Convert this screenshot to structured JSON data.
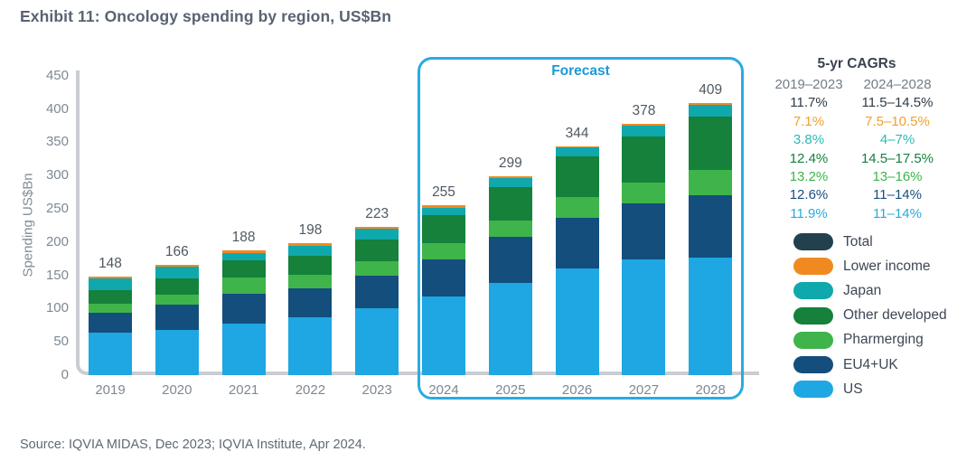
{
  "title": "Exhibit 11: Oncology spending by region, US$Bn",
  "source": "Source: IQVIA MIDAS, Dec 2023; IQVIA Institute, Apr 2024.",
  "chart_data": {
    "type": "bar",
    "stacked": true,
    "title": "Oncology spending by region, US$Bn",
    "ylabel": "Spending US$Bn",
    "ylim": [
      0,
      450
    ],
    "y_tick_step": 50,
    "grid": false,
    "legend_position": "right",
    "categories": [
      "2019",
      "2020",
      "2021",
      "2022",
      "2023",
      "2024",
      "2025",
      "2026",
      "2027",
      "2028"
    ],
    "totals": [
      148,
      166,
      188,
      198,
      223,
      255,
      299,
      344,
      378,
      409
    ],
    "forecast_label": "Forecast",
    "forecast_years": [
      "2024",
      "2025",
      "2026",
      "2027",
      "2028"
    ],
    "series": [
      {
        "name": "US",
        "color": "#1ea7e2",
        "values": [
          64,
          68,
          78,
          87,
          100,
          118,
          139,
          161,
          174,
          176
        ]
      },
      {
        "name": "EU4+UK",
        "color": "#134e7d",
        "values": [
          30,
          38,
          44,
          43,
          50,
          56,
          69,
          76,
          84,
          94
        ]
      },
      {
        "name": "Pharmerging",
        "color": "#3fb44a",
        "values": [
          13,
          15,
          25,
          21,
          21,
          24,
          25,
          31,
          31,
          38
        ]
      },
      {
        "name": "Other developed",
        "color": "#15813b",
        "values": [
          21,
          25,
          25,
          29,
          33,
          43,
          50,
          61,
          70,
          81
        ]
      },
      {
        "name": "Japan",
        "color": "#0fa8ac",
        "values": [
          17,
          17,
          12,
          14,
          16,
          11,
          13,
          13,
          16,
          17
        ]
      },
      {
        "name": "Lower income",
        "color": "#f08a20",
        "values": [
          3,
          3,
          4,
          4,
          3,
          3,
          3,
          2,
          3,
          3
        ]
      }
    ]
  },
  "legend": {
    "items": [
      {
        "label": "Total",
        "color": "#23404e"
      },
      {
        "label": "Lower income",
        "color": "#f08a20"
      },
      {
        "label": "Japan",
        "color": "#0fa8ac"
      },
      {
        "label": "Other developed",
        "color": "#15813b"
      },
      {
        "label": "Pharmerging",
        "color": "#3fb44a"
      },
      {
        "label": "EU4+UK",
        "color": "#134e7d"
      },
      {
        "label": "US",
        "color": "#1ea7e2"
      }
    ]
  },
  "cagr": {
    "title": "5-yr CAGRs",
    "columns": [
      "2019–2023",
      "2024–2028"
    ],
    "rows": [
      {
        "series": "Total",
        "col1": "11.7%",
        "col2": "11.5–14.5%",
        "color": "#2e3c48"
      },
      {
        "series": "Lower income",
        "col1": "7.1%",
        "col2": "7.5–10.5%",
        "color": "#f2a02e"
      },
      {
        "series": "Japan",
        "col1": "3.8%",
        "col2": "4–7%",
        "color": "#2eb8b8"
      },
      {
        "series": "Other developed",
        "col1": "12.4%",
        "col2": "14.5–17.5%",
        "color": "#15813b"
      },
      {
        "series": "Pharmerging",
        "col1": "13.2%",
        "col2": "13–16%",
        "color": "#3cb549"
      },
      {
        "series": "EU4+UK",
        "col1": "12.6%",
        "col2": "11–14%",
        "color": "#174e7e"
      },
      {
        "series": "US",
        "col1": "11.9%",
        "col2": "11–14%",
        "color": "#29a9e0"
      }
    ]
  }
}
